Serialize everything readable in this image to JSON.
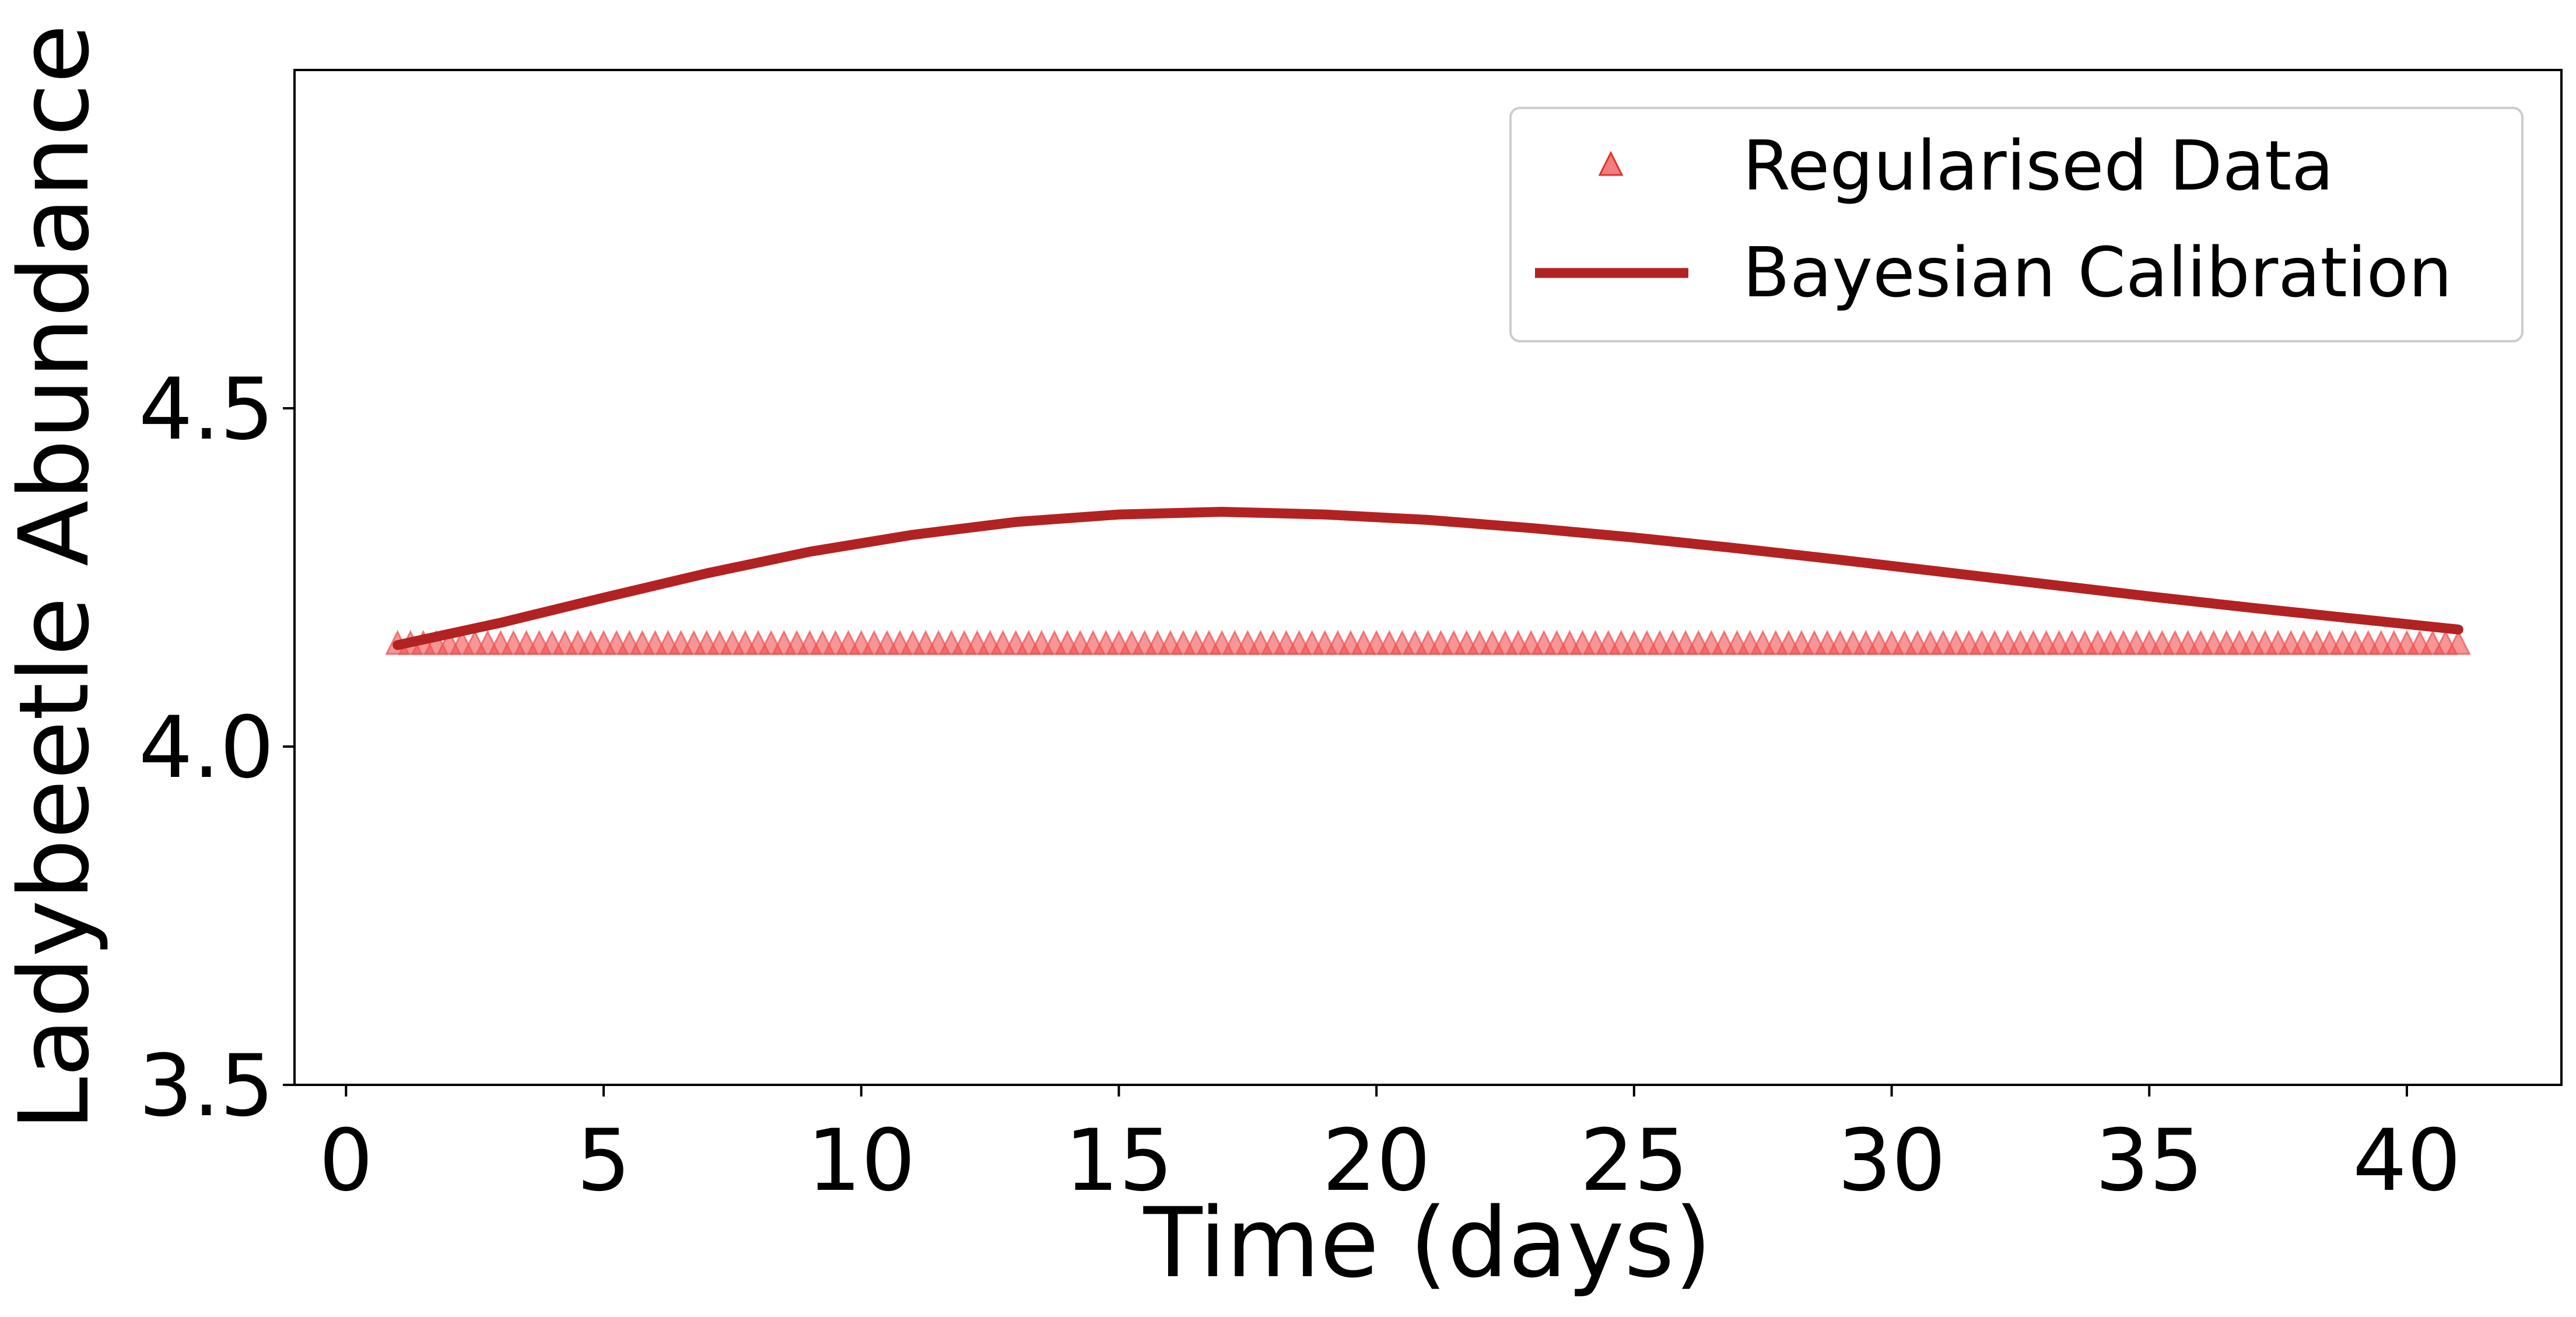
{
  "chart_data": {
    "type": "line",
    "title": "",
    "xlabel": "Time (days)",
    "ylabel": "Ladybeetle Abundance",
    "xlim": [
      -1,
      43
    ],
    "ylim": [
      3.5,
      5.0
    ],
    "xticks": [
      0,
      5,
      10,
      15,
      20,
      25,
      30,
      35,
      40
    ],
    "xtick_labels": [
      "0",
      "5",
      "10",
      "15",
      "20",
      "25",
      "30",
      "35",
      "40"
    ],
    "yticks": [
      3.5,
      4.0,
      4.5
    ],
    "ytick_labels": [
      "3.5",
      "4.0",
      "4.5"
    ],
    "grid": false,
    "legend_position": "top-right",
    "series": [
      {
        "name": "Regularised Data",
        "kind": "scatter",
        "marker": "triangle",
        "color": "#f05050",
        "x_range": [
          1,
          41
        ],
        "x_step": 0.25,
        "y_constant": 4.15
      },
      {
        "name": "Bayesian Calibration",
        "kind": "line",
        "color": "#b22222",
        "x": [
          1,
          3,
          5,
          7,
          9,
          11,
          13,
          15,
          17,
          19,
          21,
          23,
          25,
          27,
          29,
          31,
          33,
          35,
          37,
          39,
          41
        ],
        "y": [
          4.15,
          4.183,
          4.22,
          4.256,
          4.288,
          4.313,
          4.332,
          4.343,
          4.347,
          4.343,
          4.335,
          4.323,
          4.309,
          4.293,
          4.276,
          4.258,
          4.24,
          4.222,
          4.205,
          4.189,
          4.173
        ]
      }
    ]
  }
}
